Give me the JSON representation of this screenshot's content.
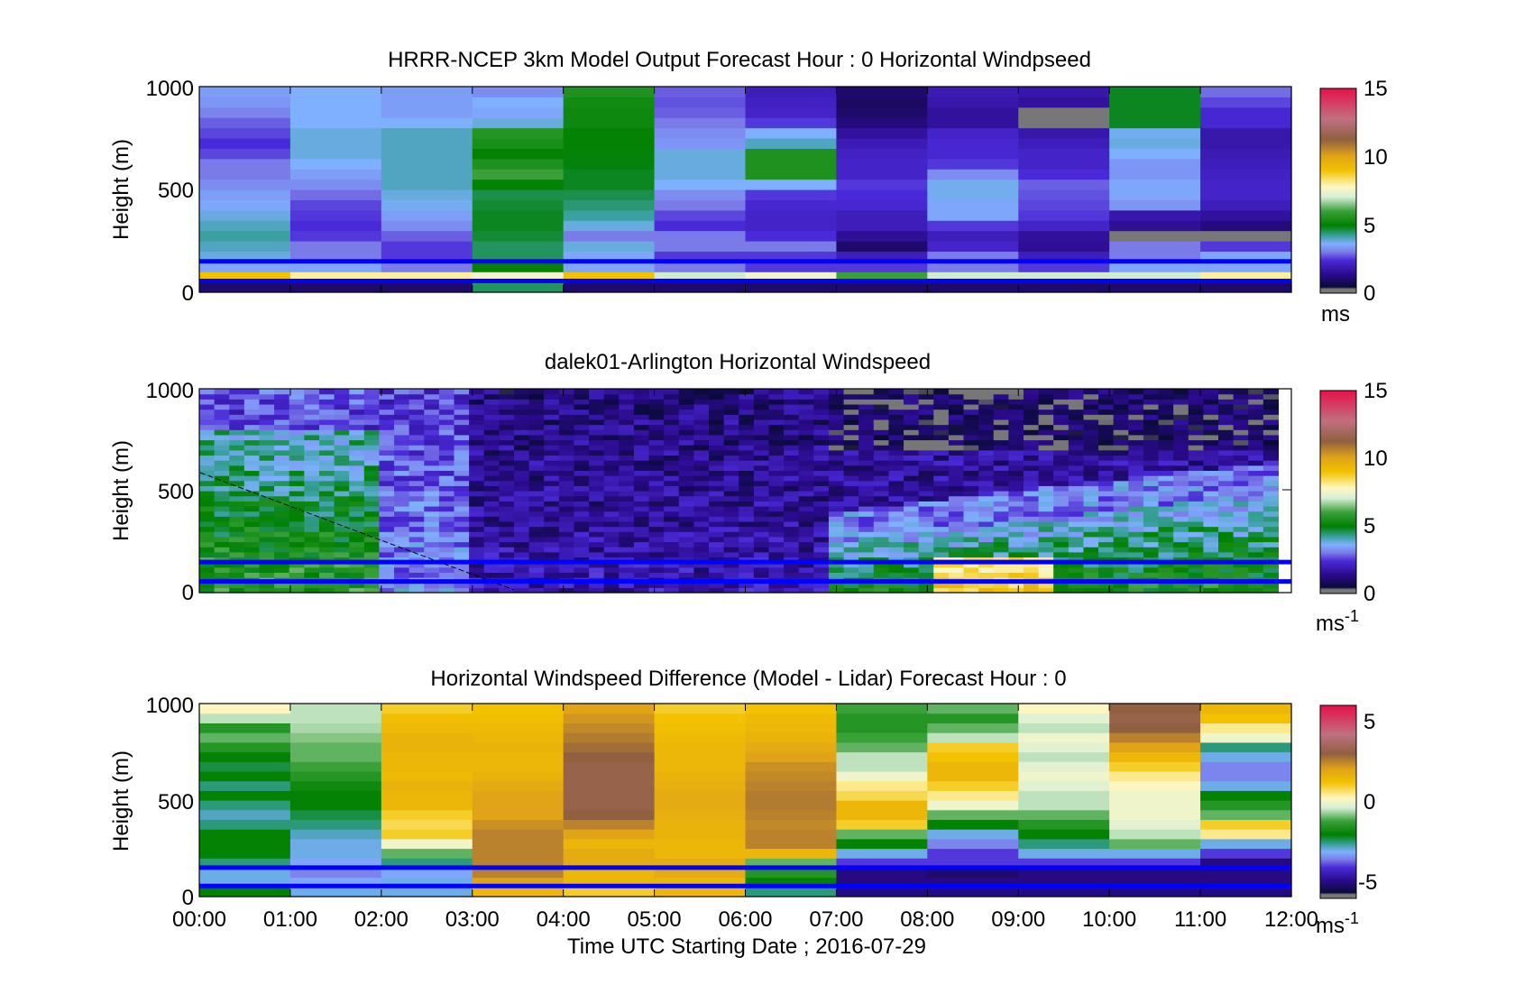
{
  "figure": {
    "xaxis_label": "Time UTC  Starting Date ; 2016-07-29",
    "time_ticks": [
      "00:00",
      "01:00",
      "02:00",
      "03:00",
      "04:00",
      "05:00",
      "06:00",
      "07:00",
      "08:00",
      "09:00",
      "10:00",
      "11:00",
      "12:00"
    ],
    "overlay_line_color": "#0000ff",
    "overlay_line_heights_m": [
      150,
      55
    ]
  },
  "chart_data": [
    {
      "type": "heatmap",
      "title": "HRRR-NCEP 3km Model Output   Forecast Hour : 0 Horizontal Windpseed",
      "ylabel": "Height (m)",
      "ylim": [
        0,
        1000
      ],
      "yticks": [
        "0",
        "500",
        "1000"
      ],
      "x": [
        "00:00",
        "01:00",
        "02:00",
        "03:00",
        "04:00",
        "05:00",
        "06:00",
        "07:00",
        "08:00",
        "09:00",
        "10:00",
        "11:00"
      ],
      "colorbar": {
        "ticks": [
          "0",
          "5",
          "10",
          "15"
        ],
        "range": [
          0,
          15
        ],
        "unit": "ms",
        "unit_sup": ""
      },
      "column_profiles_ms": [
        [
          1,
          9,
          3.5,
          3.8,
          4,
          4.2,
          4,
          3.8,
          3.5,
          3.4,
          3.2,
          3,
          3,
          2.6,
          2.4,
          2.6,
          2.8,
          3.1,
          3.3,
          3.4
        ],
        [
          1,
          8,
          3.5,
          3,
          3,
          2.5,
          2.4,
          2.5,
          2.6,
          2.9,
          3.2,
          3.4,
          3.6,
          3.8,
          3.8,
          3.8,
          3.6,
          3.6,
          3.6,
          3.6
        ],
        [
          1,
          8,
          3,
          2.5,
          2.5,
          2.8,
          3.2,
          3.4,
          3.7,
          3.8,
          4,
          4,
          4,
          4,
          4,
          4,
          3.6,
          3.4,
          3.4,
          3.4
        ],
        [
          4.5,
          7.5,
          5,
          4.5,
          4.5,
          4.7,
          4.8,
          4.8,
          4.7,
          4.6,
          5,
          6,
          5.5,
          5,
          5.4,
          5.6,
          3.8,
          3.5,
          3.6,
          3.2
        ],
        [
          1,
          9,
          3.5,
          3.5,
          3.8,
          3,
          3.8,
          4.2,
          4.4,
          4.6,
          4.8,
          4.8,
          4.9,
          4.9,
          5,
          5,
          5.2,
          5.2,
          5.3,
          5.5
        ],
        [
          1,
          7,
          3,
          2.5,
          3,
          3,
          2.4,
          2.6,
          3,
          3.2,
          3.6,
          3.8,
          3.8,
          3.8,
          3.3,
          3.2,
          3,
          2.8,
          2.7,
          2.8
        ],
        [
          1,
          7.5,
          2.5,
          2.5,
          3,
          2.4,
          2.2,
          2.2,
          2.3,
          2.5,
          3.6,
          5.5,
          5.5,
          5.5,
          4,
          3.6,
          2.5,
          2.2,
          2.1,
          2
        ],
        [
          1,
          6,
          2.5,
          2,
          1,
          1.5,
          2,
          2,
          2.3,
          2.4,
          2.5,
          2.2,
          2.2,
          2.1,
          1.9,
          1.6,
          1.2,
          1,
          0.9,
          1
        ],
        [
          1,
          7,
          3,
          3,
          2.2,
          2,
          2.5,
          3.5,
          3.5,
          3.7,
          3.7,
          3.2,
          2.5,
          2.3,
          2.3,
          2.2,
          1.6,
          1.6,
          1.8,
          1.9
        ],
        [
          1,
          7,
          2.5,
          2,
          1.5,
          1.6,
          2.2,
          2.5,
          2.6,
          2.7,
          2.8,
          2.4,
          2.2,
          2.2,
          2,
          1.8,
          0.3,
          0.3,
          1.6,
          1.8
        ],
        [
          1,
          7,
          3.5,
          3,
          3,
          0.3,
          1.5,
          1.8,
          3.3,
          3.5,
          3.5,
          3.3,
          3.3,
          3.6,
          3.8,
          3.7,
          4.8,
          4.8,
          4.8,
          4.8
        ],
        [
          1,
          8,
          3.5,
          3.5,
          2.5,
          0.3,
          1.2,
          1.6,
          2,
          2.2,
          2.2,
          2.1,
          2,
          1.9,
          1.8,
          1.8,
          2.3,
          2.3,
          2.6,
          2.9
        ]
      ]
    },
    {
      "type": "heatmap",
      "title": "dalek01-Arlington  Horizontal Windspeed",
      "ylabel": "Height (m)",
      "ylim": [
        0,
        1000
      ],
      "yticks": [
        "0",
        "500",
        "1000"
      ],
      "x": [
        "00:00",
        "12:00"
      ],
      "colorbar": {
        "ticks": [
          "0",
          "5",
          "10",
          "15"
        ],
        "range": [
          0,
          15
        ],
        "unit": "ms",
        "unit_sup": "-1"
      },
      "description_profiles_by_hour": "low-level jet 00-02 UTC, weak winds 03-07 UTC, moderate low-level winds 07-12 UTC"
    },
    {
      "type": "heatmap",
      "title": "Horizontal Windspeed Difference (Model - Lidar) Forecast Hour : 0",
      "ylabel": "Height (m)",
      "ylim": [
        0,
        1000
      ],
      "yticks": [
        "0",
        "500",
        "1000"
      ],
      "x": [
        "00:00",
        "01:00",
        "02:00",
        "03:00",
        "04:00",
        "05:00",
        "06:00",
        "07:00",
        "08:00",
        "09:00",
        "10:00",
        "11:00"
      ],
      "colorbar": {
        "ticks": [
          "-5",
          "0",
          "5"
        ],
        "range": [
          -6,
          6
        ],
        "unit": "ms",
        "unit_sup": "-1"
      },
      "column_profiles_ms": [
        [
          -2,
          -3,
          -3,
          -2.5,
          -2,
          -2,
          -2,
          -2.5,
          -2.8,
          -2.5,
          -2,
          -2.5,
          -2,
          -2.3,
          -2,
          -1.5,
          -1,
          -1.5,
          -0.5,
          0.2
        ],
        [
          -3,
          -3.2,
          -3.5,
          -3.2,
          -3,
          -3,
          -2.8,
          -2.5,
          -2.3,
          -2,
          -2,
          -1.8,
          -1.5,
          -1.2,
          -1,
          -1,
          -0.8,
          -0.6,
          -0.5,
          -0.5
        ],
        [
          -3,
          -3,
          -3.2,
          -2.5,
          -1,
          0,
          1,
          0.8,
          1,
          1.5,
          1.5,
          1.6,
          1.4,
          1.5,
          1.5,
          1.6,
          1.6,
          1.4,
          1.3,
          1
        ],
        [
          1.5,
          2,
          2.5,
          2.5,
          2.5,
          2.5,
          2.5,
          2.3,
          2,
          2,
          2,
          1.8,
          1.6,
          1.5,
          1.5,
          1.6,
          1.5,
          1.4,
          1.3,
          1.2
        ],
        [
          1,
          1.5,
          1.5,
          1.8,
          1.8,
          1.5,
          2,
          2.5,
          3,
          3.2,
          3.2,
          3.2,
          3.2,
          3.2,
          3,
          2.8,
          2.6,
          2.4,
          2.2,
          2
        ],
        [
          1.5,
          1.5,
          1.8,
          1.8,
          1.5,
          1.5,
          1.6,
          1.6,
          1.7,
          1.8,
          1.8,
          1.7,
          1.6,
          1.5,
          1.5,
          1.5,
          1.4,
          1.3,
          1.2,
          1
        ],
        [
          -2.5,
          -2,
          -1.5,
          -1,
          1.5,
          2.5,
          2.5,
          2.4,
          2.5,
          2.6,
          2.6,
          2.5,
          2.4,
          2.3,
          2,
          1.8,
          1.6,
          1.5,
          1.4,
          1.2
        ],
        [
          -5,
          -5,
          -5,
          -4,
          -3,
          -2,
          -1,
          1,
          1.5,
          1.5,
          0.8,
          0.5,
          0,
          -0.5,
          -0.5,
          -1,
          -1.2,
          -1.5,
          -1.5,
          -1.2
        ],
        [
          -5,
          -5,
          -5.2,
          -4,
          -4,
          -3.5,
          -3,
          -2,
          -1,
          0,
          0.5,
          1,
          1.5,
          1.5,
          1.2,
          1,
          -0.5,
          -1,
          -1.5,
          -1
        ],
        [
          -5,
          -5,
          -5,
          -4,
          -3,
          -2.5,
          -2,
          -1.5,
          -1,
          -0.5,
          -0.5,
          -0.2,
          0,
          -0.2,
          -0.5,
          -0.2,
          0,
          -0.5,
          -0.2,
          0.2
        ],
        [
          -5,
          -5,
          -5,
          -4,
          -3,
          -1,
          -0.5,
          -0.2,
          0,
          0,
          0,
          0.2,
          0.5,
          1,
          1.5,
          2,
          2.5,
          3,
          3.2,
          3
        ],
        [
          -5,
          -5,
          -5,
          -5,
          -4,
          -3,
          0.5,
          1,
          -1,
          -1.5,
          -2,
          -3,
          -3.5,
          -3.5,
          -3,
          -2.5,
          0,
          0.5,
          1.2,
          1.5
        ]
      ]
    }
  ]
}
